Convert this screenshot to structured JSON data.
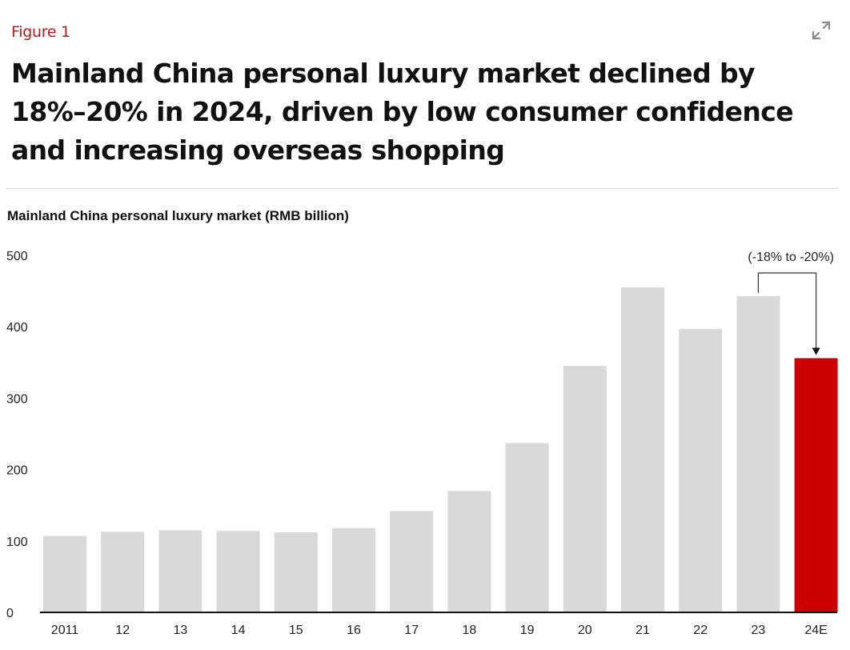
{
  "figure_label": "Figure 1",
  "headline": "Mainland China personal luxury market declined by 18%–20% in 2024, driven by low consumer confidence and increasing overseas shopping",
  "icons": {
    "expand": "expand-icon"
  },
  "colors": {
    "highlight": "#cc0000",
    "bar": "#d9d9d9",
    "figure_label": "#b01c1c",
    "axis": "#111111"
  },
  "chart_data": {
    "type": "bar",
    "title": "Mainland China personal luxury market (RMB billion)",
    "xlabel": "",
    "ylabel": "",
    "ylim": [
      0,
      500
    ],
    "yticks": [
      0,
      100,
      200,
      300,
      400,
      500
    ],
    "categories": [
      "2011",
      "12",
      "13",
      "14",
      "15",
      "16",
      "17",
      "18",
      "19",
      "20",
      "21",
      "22",
      "23",
      "24E"
    ],
    "values": [
      107,
      113,
      115,
      114,
      112,
      118,
      142,
      170,
      237,
      345,
      455,
      397,
      443,
      356
    ],
    "highlight_index": 13,
    "grid": false,
    "annotation": {
      "text": "(-18% to -20%)",
      "from_category": "23",
      "to_category": "24E"
    }
  }
}
